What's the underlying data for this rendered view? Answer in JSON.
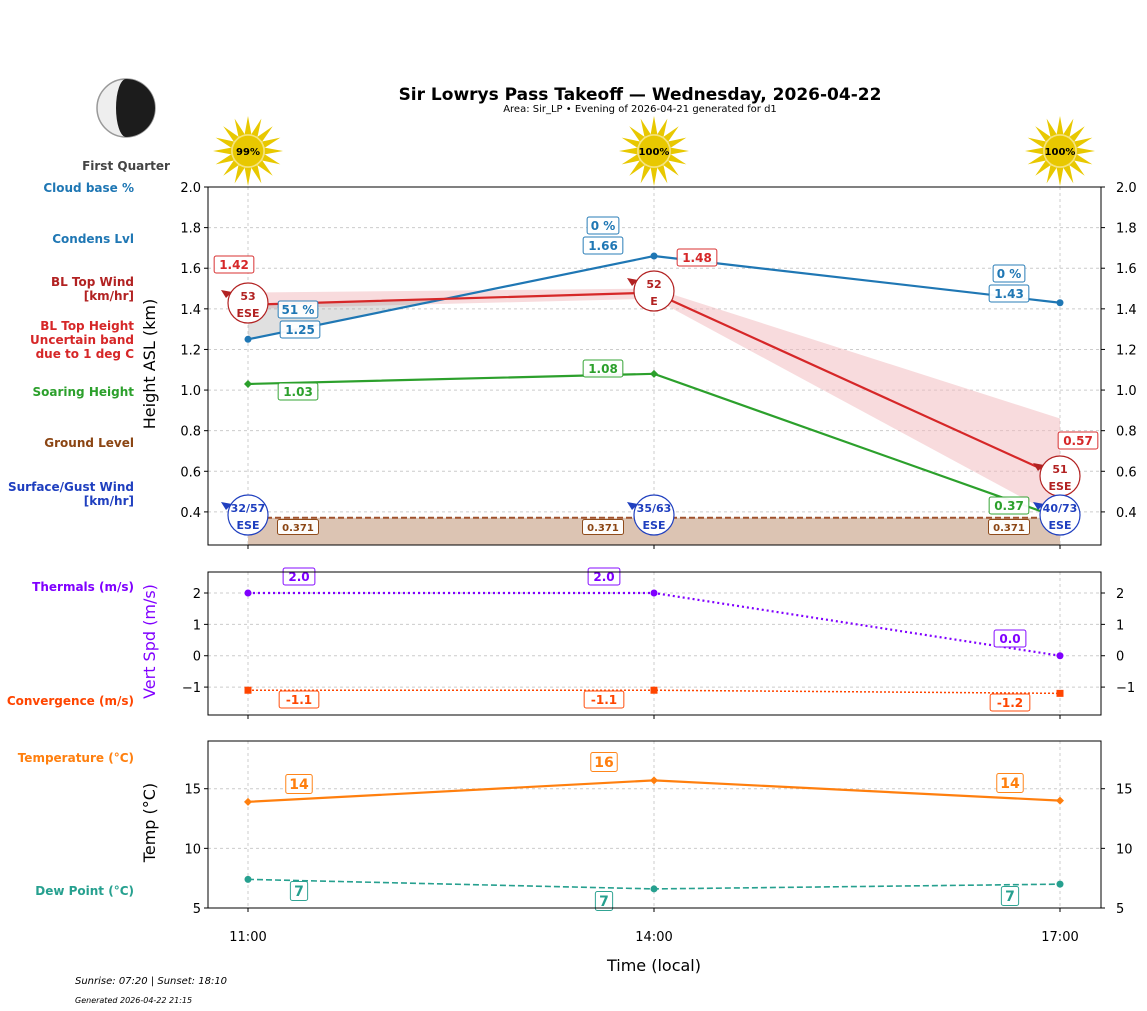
{
  "title": "Sir Lowrys Pass Takeoff — Wednesday, 2026-04-22",
  "subtitle": "Area: Sir_LP • Evening of 2026-04-21 generated for d1",
  "moon_phase": "First Quarter",
  "sunrise_sunset": "Sunrise: 07:20 | Sunset: 18:10",
  "generated": "Generated 2026-04-22 21:15",
  "colors": {
    "cloud": "#1f77b4",
    "bl": "#d62728",
    "bl_dark": "#b22222",
    "soar": "#2ca02c",
    "ground": "#8b4513",
    "surface": "#1f3fbf",
    "thermal": "#8000ff",
    "conv": "#ff4500",
    "temp": "#ff7f0e",
    "dew": "#26a08f",
    "sun": "#e8c800"
  },
  "chart_data": [
    {
      "type": "line",
      "ylabel": "Height ASL (km)",
      "ylim": [
        0.237,
        2.0
      ],
      "yticks": [
        "2.0",
        "1.8",
        "1.6",
        "1.4",
        "1.2",
        "1.0",
        "0.8",
        "0.6",
        "0.4"
      ],
      "x": [
        "11:00",
        "14:00",
        "17:00"
      ],
      "grid": true,
      "row_labels": {
        "cloud_base": "Cloud base %",
        "condens": "Condens Lvl",
        "bl_wind": "BL Top Wind\n[km/hr]",
        "bl_height": "BL Top Height\nUncertain band\ndue to 1 deg C",
        "soaring": "Soaring Height",
        "ground": "Ground Level",
        "surface_wind": "Surface/Gust Wind\n[km/hr]"
      },
      "sun_percent": [
        "99%",
        "100%",
        "100%"
      ],
      "cloud_base_pct": [
        "51 %",
        "0 %",
        "0 %"
      ],
      "series": [
        {
          "key": "condens",
          "values": [
            1.25,
            1.66,
            1.43
          ],
          "labels": [
            "1.25",
            "1.66",
            "1.43"
          ]
        },
        {
          "key": "bl_top",
          "values": [
            1.42,
            1.48,
            0.57
          ],
          "labels": [
            "1.42",
            "1.48",
            "0.57"
          ],
          "band_low": [
            1.4,
            1.45,
            0.37
          ],
          "band_high": [
            1.48,
            1.5,
            0.86
          ]
        },
        {
          "key": "soaring",
          "values": [
            1.03,
            1.08,
            0.37
          ],
          "labels": [
            "1.03",
            "1.08",
            "0.37"
          ]
        },
        {
          "key": "ground",
          "values": [
            0.371,
            0.371,
            0.371
          ],
          "labels": [
            "0.371",
            "0.371",
            "0.371"
          ]
        }
      ],
      "bl_wind": [
        {
          "speed": "53",
          "dir": "ESE"
        },
        {
          "speed": "52",
          "dir": "E"
        },
        {
          "speed": "51",
          "dir": "ESE"
        }
      ],
      "surface_wind": [
        {
          "speed": "32/57",
          "dir": "ESE"
        },
        {
          "speed": "35/63",
          "dir": "ESE"
        },
        {
          "speed": "40/73",
          "dir": "ESE"
        }
      ]
    },
    {
      "type": "line",
      "ylabel": "Vert Spd (m/s)",
      "ylim": [
        -1.89,
        2.67
      ],
      "yticks": [
        "2",
        "1",
        "0",
        "−1"
      ],
      "x": [
        "11:00",
        "14:00",
        "17:00"
      ],
      "row_labels": {
        "thermals": "Thermals (m/s)",
        "convergence": "Convergence (m/s)"
      },
      "series": [
        {
          "key": "thermals",
          "values": [
            2.0,
            2.0,
            0.0
          ],
          "labels": [
            "2.0",
            "2.0",
            "0.0"
          ]
        },
        {
          "key": "convergence",
          "values": [
            -1.1,
            -1.1,
            -1.2
          ],
          "labels": [
            "-1.1",
            "-1.1",
            "-1.2"
          ]
        }
      ]
    },
    {
      "type": "line",
      "ylabel": "Temp (°C)",
      "xlabel": "Time (local)",
      "ylim": [
        5,
        19
      ],
      "yticks": [
        "15",
        "10",
        "5"
      ],
      "x": [
        "11:00",
        "14:00",
        "17:00"
      ],
      "row_labels": {
        "temperature": "Temperature (°C)",
        "dew": "Dew Point (°C)"
      },
      "series": [
        {
          "key": "temperature",
          "values": [
            13.9,
            15.7,
            14.0
          ],
          "labels": [
            "14",
            "16",
            "14"
          ]
        },
        {
          "key": "dew",
          "values": [
            7.4,
            6.6,
            7.0
          ],
          "labels": [
            "7",
            "7",
            "7"
          ]
        }
      ]
    }
  ]
}
